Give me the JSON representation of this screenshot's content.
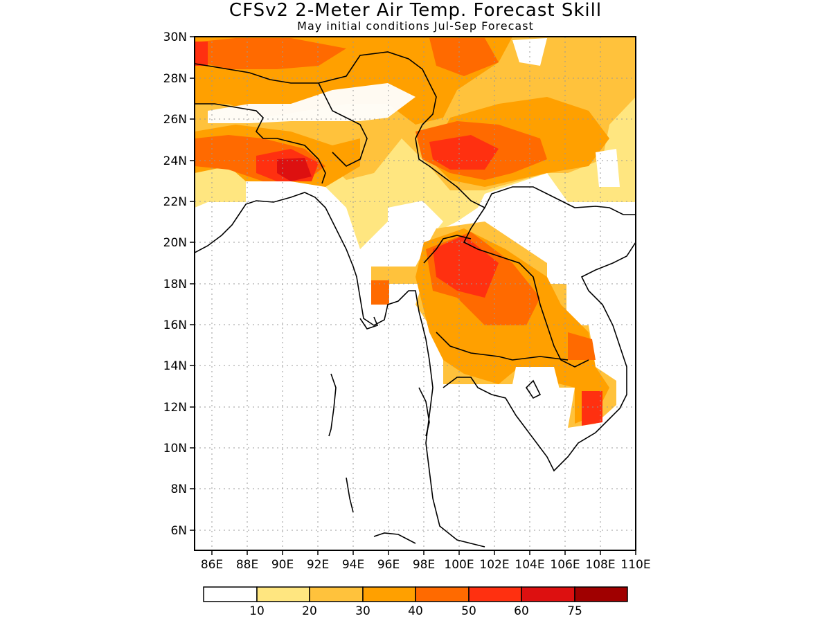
{
  "title": "CFSv2 2-Meter Air Temp. Forecast Skill",
  "subtitle": "May initial conditions  Jul-Sep Forecast",
  "map": {
    "lon_range": [
      85,
      110
    ],
    "lat_range": [
      5,
      30
    ],
    "grid": true,
    "lon_ticks": [
      "86E",
      "88E",
      "90E",
      "92E",
      "94E",
      "96E",
      "98E",
      "100E",
      "102E",
      "104E",
      "106E",
      "108E",
      "110E"
    ],
    "lat_ticks": [
      "30N",
      "28N",
      "26N",
      "24N",
      "22N",
      "20N",
      "18N",
      "16N",
      "14N",
      "12N",
      "10N",
      "8N",
      "6N"
    ]
  },
  "colorbar": {
    "colors": [
      "#ffffff",
      "#ffe680",
      "#ffc23c",
      "#ffa000",
      "#ff6a00",
      "#ff3010",
      "#dd1010",
      "#a00000"
    ],
    "labels": [
      "10",
      "20",
      "30",
      "40",
      "50",
      "60",
      "75"
    ]
  }
}
